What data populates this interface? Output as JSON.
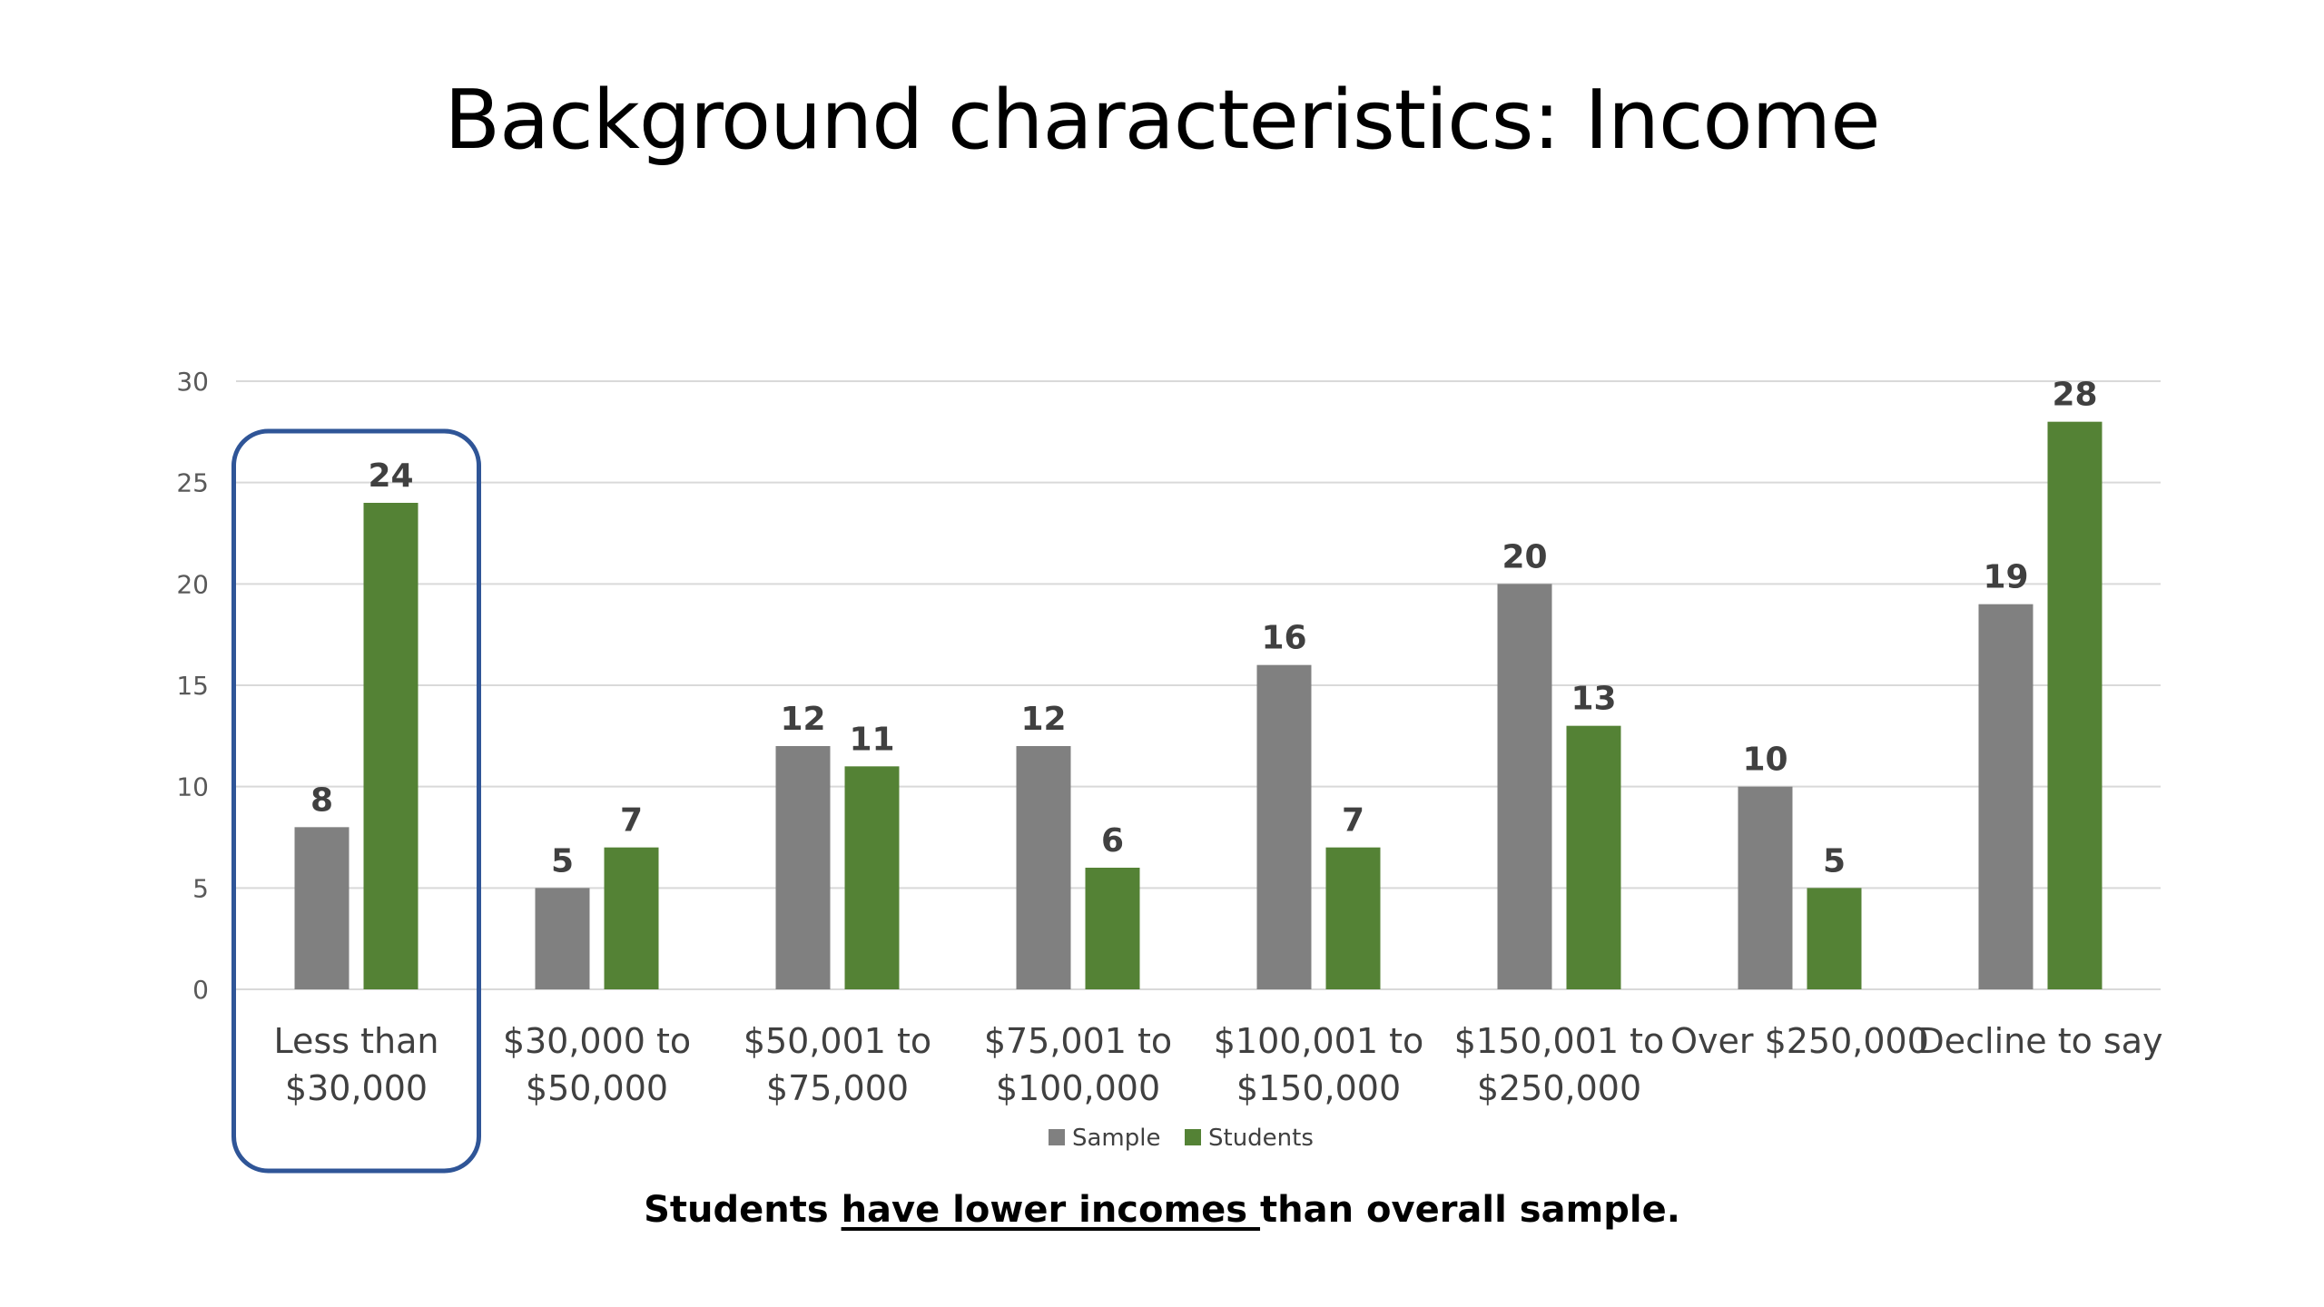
{
  "slide": {
    "title": "Background characteristics: Income",
    "caption_before": "Students ",
    "caption_underlined": "have lower incomes ",
    "caption_after": "than overall sample."
  },
  "colors": {
    "sample": "#808080",
    "students": "#548235",
    "highlight_box": "#2F5597",
    "gridline": "#D9D9D9"
  },
  "chart_data": {
    "type": "bar",
    "title": "Background characteristics: Income",
    "xlabel": "",
    "ylabel": "",
    "ylim": [
      0,
      30
    ],
    "yticks": [
      "0",
      "5",
      "10",
      "15",
      "20",
      "25",
      "30"
    ],
    "grid": true,
    "legend_position": "bottom",
    "categories": [
      [
        "Less than",
        "$30,000"
      ],
      [
        "$30,000 to",
        "$50,000"
      ],
      [
        "$50,001 to",
        "$75,000"
      ],
      [
        "$75,001 to",
        "$100,000"
      ],
      [
        "$100,001 to",
        "$150,000"
      ],
      [
        "$150,001 to",
        "$250,000"
      ],
      [
        "Over $250,000"
      ],
      [
        "Decline to say"
      ]
    ],
    "series": [
      {
        "name": "Sample",
        "values": [
          8,
          5,
          12,
          12,
          16,
          20,
          10,
          19
        ]
      },
      {
        "name": "Students",
        "values": [
          24,
          7,
          11,
          6,
          7,
          13,
          5,
          28
        ]
      }
    ],
    "highlighted_category_index": 0
  }
}
